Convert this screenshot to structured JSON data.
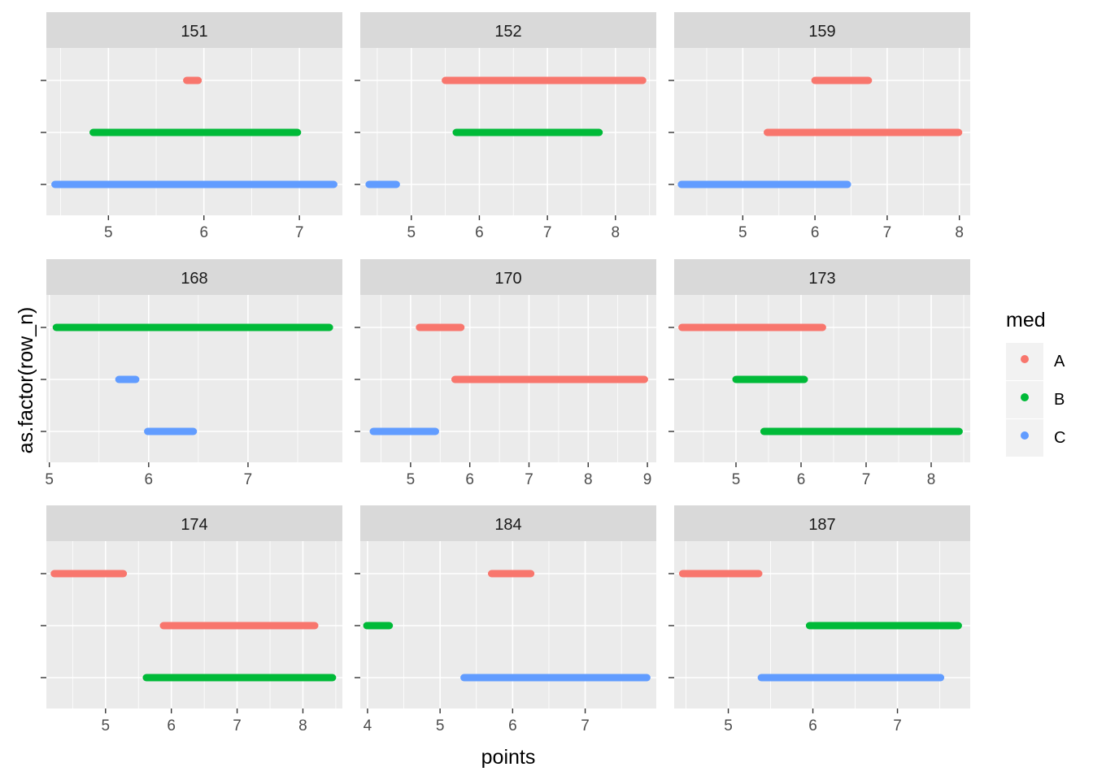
{
  "chart_data": {
    "type": "faceted-segment",
    "xlabel": "points",
    "ylabel": "as.factor(row_n)",
    "y_tick_labels": [
      "",
      "",
      ""
    ],
    "legend": {
      "title": "med",
      "entries": [
        {
          "label": "A",
          "color": "#F8766D"
        },
        {
          "label": "B",
          "color": "#00BA38"
        },
        {
          "label": "C",
          "color": "#619CFF"
        }
      ]
    },
    "facets": [
      {
        "label": "151",
        "xlim": [
          4.35,
          7.45
        ],
        "ticks": [
          5,
          6,
          7
        ],
        "segments": [
          {
            "row": 3,
            "group": "A",
            "x": [
              5.82,
              5.94
            ]
          },
          {
            "row": 2,
            "group": "B",
            "x": [
              4.84,
              6.98
            ]
          },
          {
            "row": 1,
            "group": "C",
            "x": [
              4.44,
              7.36
            ]
          }
        ]
      },
      {
        "label": "152",
        "xlim": [
          4.25,
          8.6
        ],
        "ticks": [
          5,
          6,
          7,
          8
        ],
        "segments": [
          {
            "row": 3,
            "group": "A",
            "x": [
              5.5,
              8.4
            ]
          },
          {
            "row": 2,
            "group": "B",
            "x": [
              5.66,
              7.76
            ]
          },
          {
            "row": 1,
            "group": "C",
            "x": [
              4.38,
              4.78
            ]
          }
        ]
      },
      {
        "label": "159",
        "xlim": [
          4.05,
          8.15
        ],
        "ticks": [
          5,
          6,
          7,
          8
        ],
        "segments": [
          {
            "row": 3,
            "group": "A",
            "x": [
              6.0,
              6.74
            ]
          },
          {
            "row": 2,
            "group": "A",
            "x": [
              5.34,
              7.99
            ]
          },
          {
            "row": 1,
            "group": "C",
            "x": [
              4.15,
              6.45
            ]
          }
        ]
      },
      {
        "label": "168",
        "xlim": [
          4.97,
          7.95
        ],
        "ticks": [
          5,
          6,
          7
        ],
        "segments": [
          {
            "row": 3,
            "group": "B",
            "x": [
              5.07,
              7.82
            ]
          },
          {
            "row": 2,
            "group": "C",
            "x": [
              5.7,
              5.87
            ]
          },
          {
            "row": 1,
            "group": "C",
            "x": [
              5.99,
              6.45
            ]
          }
        ]
      },
      {
        "label": "170",
        "xlim": [
          4.15,
          9.15
        ],
        "ticks": [
          5,
          6,
          7,
          8,
          9
        ],
        "segments": [
          {
            "row": 3,
            "group": "A",
            "x": [
              5.15,
              5.85
            ]
          },
          {
            "row": 2,
            "group": "A",
            "x": [
              5.75,
              8.95
            ]
          },
          {
            "row": 1,
            "group": "C",
            "x": [
              4.37,
              5.42
            ]
          }
        ]
      },
      {
        "label": "173",
        "xlim": [
          4.05,
          8.6
        ],
        "ticks": [
          5,
          6,
          7,
          8
        ],
        "segments": [
          {
            "row": 3,
            "group": "A",
            "x": [
              4.17,
              6.33
            ]
          },
          {
            "row": 2,
            "group": "B",
            "x": [
              5.0,
              6.05
            ]
          },
          {
            "row": 1,
            "group": "B",
            "x": [
              5.43,
              8.43
            ]
          }
        ]
      },
      {
        "label": "174",
        "xlim": [
          4.1,
          8.6
        ],
        "ticks": [
          5,
          6,
          7,
          8
        ],
        "segments": [
          {
            "row": 3,
            "group": "A",
            "x": [
              4.22,
              5.27
            ]
          },
          {
            "row": 2,
            "group": "A",
            "x": [
              5.88,
              8.18
            ]
          },
          {
            "row": 1,
            "group": "B",
            "x": [
              5.62,
              8.45
            ]
          }
        ]
      },
      {
        "label": "184",
        "xlim": [
          3.9,
          7.98
        ],
        "ticks": [
          4,
          5,
          6,
          7
        ],
        "segments": [
          {
            "row": 3,
            "group": "A",
            "x": [
              5.71,
              6.25
            ]
          },
          {
            "row": 2,
            "group": "B",
            "x": [
              3.99,
              4.3
            ]
          },
          {
            "row": 1,
            "group": "C",
            "x": [
              5.33,
              7.85
            ]
          }
        ]
      },
      {
        "label": "187",
        "xlim": [
          4.36,
          7.86
        ],
        "ticks": [
          5,
          6,
          7
        ],
        "segments": [
          {
            "row": 3,
            "group": "A",
            "x": [
              4.46,
              5.36
            ]
          },
          {
            "row": 2,
            "group": "B",
            "x": [
              5.96,
              7.72
            ]
          },
          {
            "row": 1,
            "group": "C",
            "x": [
              5.39,
              7.51
            ]
          }
        ]
      }
    ]
  }
}
